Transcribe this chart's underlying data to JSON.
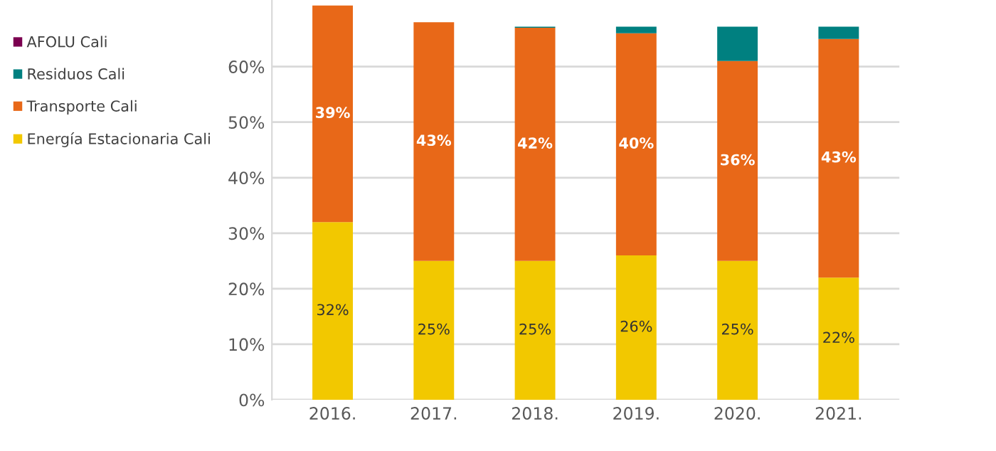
{
  "chart_data": {
    "type": "bar",
    "stacked": true,
    "categories": [
      "2016.",
      "2017.",
      "2018.",
      "2019.",
      "2020.",
      "2021."
    ],
    "series": [
      {
        "name": "Energía Estacionaria Cali",
        "color": "#f2c800",
        "values": [
          32,
          25,
          25,
          26,
          25,
          22
        ],
        "value_labels": [
          "32%",
          "25%",
          "25%",
          "26%",
          "25%",
          "22%"
        ]
      },
      {
        "name": "Transporte Cali",
        "color": "#e86818",
        "values": [
          39,
          43,
          42,
          40,
          36,
          43
        ],
        "value_labels": [
          "39%",
          "43%",
          "42%",
          "40%",
          "36%",
          "43%"
        ]
      },
      {
        "name": "Residuos Cali",
        "color": "#008080",
        "values": [
          null,
          null,
          0.2,
          1.2,
          6.2,
          2.2
        ]
      },
      {
        "name": "AFOLU Cali",
        "color": "#7b0050",
        "values": [
          null,
          null,
          null,
          null,
          null,
          null
        ]
      }
    ],
    "ylim": [
      0,
      72
    ],
    "yticks": [
      {
        "value": 0,
        "label": "0%"
      },
      {
        "value": 10,
        "label": "10%"
      },
      {
        "value": 20,
        "label": "20%"
      },
      {
        "value": 30,
        "label": "30%"
      },
      {
        "value": 40,
        "label": "40%"
      },
      {
        "value": 50,
        "label": "50%"
      },
      {
        "value": 60,
        "label": "60%"
      }
    ],
    "grid": "y",
    "legend": "left"
  }
}
